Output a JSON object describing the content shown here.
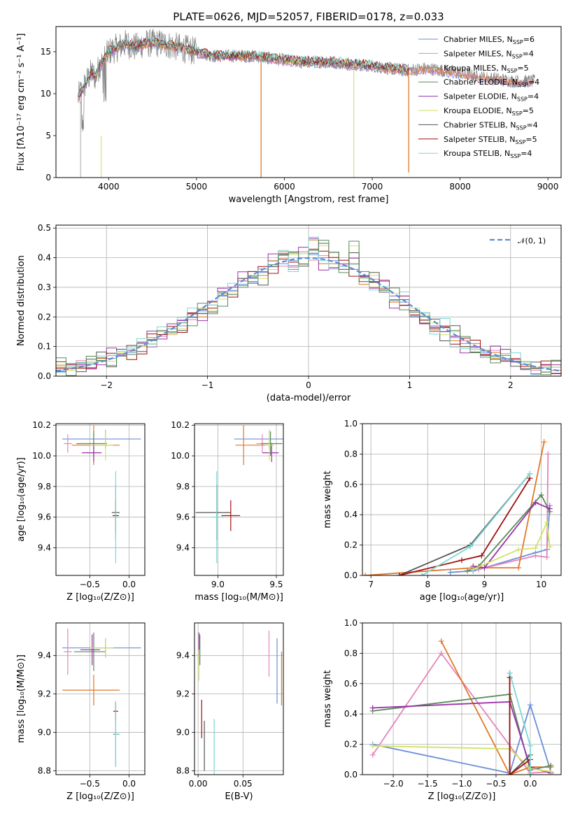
{
  "colors": [
    "#6a8fd8",
    "#e484bb",
    "#e07828",
    "#5a8a5a",
    "#9a32a8",
    "#d2e262",
    "#555555",
    "#a01010",
    "#7ed6d6"
  ],
  "chart_data": [
    {
      "id": "spectrum",
      "type": "line",
      "title": "PLATE=0626, MJD=52057, FIBERID=0178, z=0.033",
      "xlabel": "wavelength [Angstrom, rest frame]",
      "ylabel": "Flux [fλ10⁻¹⁷ erg cm⁻² s⁻¹ A⁻¹]",
      "xlim": [
        3400,
        9150
      ],
      "ylim": [
        0,
        18
      ],
      "xticks": [
        4000,
        5000,
        6000,
        7000,
        8000,
        9000
      ],
      "yticks": [
        0,
        5,
        10,
        15
      ],
      "legend_position": "top-right",
      "legend": [
        "Chabrier MILES, N_SSP=6",
        "Salpeter MILES, N_SSP=4",
        "Kroupa MILES, N_SSP=5",
        "Chabrier ELODIE, N_SSP=4",
        "Salpeter ELODIE, N_SSP=4",
        "Kroupa ELODIE, N_SSP=5",
        "Chabrier STELIB, N_SSP=4",
        "Salpeter STELIB, N_SSP=5",
        "Kroupa STELIB, N_SSP=4"
      ],
      "data_curve": {
        "x": [
          3650,
          3700,
          3750,
          3800,
          3850,
          3900,
          3950,
          4000,
          4100,
          4200,
          4300,
          4400,
          4500,
          4600,
          4800,
          5000,
          5200,
          5400,
          5600,
          5800,
          6000,
          6200,
          6400,
          6600,
          6800,
          7000,
          7200,
          7400,
          7600,
          7800,
          8000,
          8200,
          8400,
          8600,
          8800
        ],
        "y": [
          9.5,
          10.5,
          11.5,
          12.5,
          12,
          13.5,
          14,
          15,
          15.5,
          16,
          15.5,
          16,
          16,
          16,
          15.5,
          15,
          14.5,
          14.5,
          14.5,
          14.3,
          14,
          13.8,
          13.8,
          13.7,
          13.5,
          13.3,
          13,
          12.8,
          13,
          12.8,
          12.5,
          12,
          11.8,
          11.5,
          11.5
        ]
      }
    },
    {
      "id": "residuals",
      "type": "histogram",
      "xlabel": "(data-model)/error",
      "ylabel": "Normed distribution",
      "xlim": [
        -2.5,
        2.5
      ],
      "ylim": [
        0,
        0.51
      ],
      "xticks": [
        -2,
        -1,
        0,
        1,
        2
      ],
      "yticks": [
        0.0,
        0.1,
        0.2,
        0.3,
        0.4,
        0.5
      ],
      "legend": [
        "𝒩(0, 1)"
      ],
      "legend_position": "top-right",
      "bin_width": 0.1,
      "bin_start": -2.5,
      "series": [
        {
          "values": [
            0.02,
            0.02,
            0.03,
            0.04,
            0.05,
            0.06,
            0.07,
            0.08,
            0.1,
            0.12,
            0.14,
            0.15,
            0.17,
            0.2,
            0.22,
            0.24,
            0.27,
            0.29,
            0.31,
            0.33,
            0.35,
            0.37,
            0.38,
            0.39,
            0.4,
            0.41,
            0.4,
            0.39,
            0.38,
            0.36,
            0.34,
            0.32,
            0.3,
            0.27,
            0.25,
            0.22,
            0.2,
            0.17,
            0.15,
            0.13,
            0.11,
            0.1,
            0.08,
            0.07,
            0.06,
            0.05,
            0.04,
            0.03,
            0.03,
            0.03
          ]
        },
        {
          "values": [
            0.03,
            0.025,
            0.035,
            0.045,
            0.06,
            0.07,
            0.075,
            0.09,
            0.11,
            0.13,
            0.15,
            0.16,
            0.19,
            0.21,
            0.2,
            0.25,
            0.28,
            0.3,
            0.33,
            0.32,
            0.34,
            0.39,
            0.42,
            0.36,
            0.42,
            0.46,
            0.38,
            0.38,
            0.36,
            0.38,
            0.31,
            0.3,
            0.32,
            0.25,
            0.27,
            0.2,
            0.19,
            0.16,
            0.17,
            0.12,
            0.1,
            0.11,
            0.07,
            0.08,
            0.05,
            0.06,
            0.04,
            0.03,
            0.04,
            0.02
          ]
        },
        {
          "values": [
            0.04,
            0.02,
            0.03,
            0.05,
            0.06,
            0.05,
            0.08,
            0.09,
            0.1,
            0.11,
            0.15,
            0.14,
            0.16,
            0.19,
            0.23,
            0.22,
            0.26,
            0.28,
            0.32,
            0.34,
            0.33,
            0.36,
            0.4,
            0.41,
            0.38,
            0.4,
            0.44,
            0.4,
            0.36,
            0.44,
            0.33,
            0.34,
            0.3,
            0.28,
            0.24,
            0.23,
            0.21,
            0.18,
            0.14,
            0.15,
            0.12,
            0.09,
            0.09,
            0.06,
            0.07,
            0.05,
            0.05,
            0.03,
            0.03,
            0.03
          ]
        }
      ],
      "normal_curve": {
        "mu": 0,
        "sigma": 1
      }
    },
    {
      "id": "age-vs-Z",
      "type": "errorbar",
      "xlabel": "Z [log₁₀(Z/Z⊙)]",
      "ylabel": "age  [log₁₀(age/yr)]",
      "xlim": [
        -0.93,
        0.2
      ],
      "ylim": [
        9.22,
        10.21
      ],
      "xticks": [
        -0.5,
        0.0
      ],
      "yticks": [
        9.4,
        9.6,
        9.8,
        10.0,
        10.2
      ],
      "points": [
        {
          "x": -0.3,
          "y": 10.11,
          "xerr": [
            0.55,
            0.45
          ],
          "yerr": 0.06,
          "c": 0
        },
        {
          "x": -0.78,
          "y": 10.08,
          "xerr": [
            0.05,
            0.05
          ],
          "yerr": 0.06,
          "c": 1
        },
        {
          "x": -0.45,
          "y": 10.07,
          "xerr": [
            0.28,
            0.33
          ],
          "yerr": 0.13,
          "c": 2
        },
        {
          "x": -0.45,
          "y": 10.08,
          "xerr": [
            0.22,
            0.17
          ],
          "yerr": 0.08,
          "c": 3
        },
        {
          "x": -0.45,
          "y": 10.02,
          "xerr": [
            0.15,
            0.1
          ],
          "yerr": 0.06,
          "c": 4
        },
        {
          "x": -0.3,
          "y": 10.07,
          "xerr": [
            0.2,
            0.1
          ],
          "yerr": 0.1,
          "c": 5
        },
        {
          "x": -0.17,
          "y": 9.63,
          "xerr": [
            0.05,
            0.05
          ],
          "yerr": 0.18,
          "c": 6
        },
        {
          "x": -0.17,
          "y": 9.61,
          "xerr": [
            0.04,
            0.04
          ],
          "yerr": 0.1,
          "c": 7
        },
        {
          "x": -0.17,
          "y": 9.6,
          "xerr": [
            0.03,
            0.05
          ],
          "yerr": 0.3,
          "c": 8
        }
      ]
    },
    {
      "id": "age-vs-mass",
      "type": "errorbar",
      "xlabel": "mass [log₁₀(M/M⊙)]",
      "ylabel": "",
      "xlim": [
        8.8,
        9.56
      ],
      "ylim": [
        9.22,
        10.21
      ],
      "xticks": [
        9.0,
        9.5
      ],
      "yticks": [
        9.4,
        9.6,
        9.8,
        10.0,
        10.2
      ],
      "points": [
        {
          "x": 9.44,
          "y": 10.11,
          "xerr": [
            0.3,
            0.15
          ],
          "yerr": 0.06,
          "c": 0
        },
        {
          "x": 9.38,
          "y": 10.08,
          "xerr": [
            0.05,
            0.05
          ],
          "yerr": 0.06,
          "c": 1
        },
        {
          "x": 9.22,
          "y": 10.07,
          "xerr": [
            0.07,
            0.2
          ],
          "yerr": 0.13,
          "c": 2
        },
        {
          "x": 9.45,
          "y": 10.08,
          "xerr": [
            0.08,
            0.1
          ],
          "yerr": 0.08,
          "c": 3
        },
        {
          "x": 9.46,
          "y": 10.02,
          "xerr": [
            0.08,
            0.06
          ],
          "yerr": 0.06,
          "c": 4
        },
        {
          "x": 9.44,
          "y": 10.07,
          "xerr": [
            0.04,
            0.04
          ],
          "yerr": 0.1,
          "c": 5
        },
        {
          "x": 8.99,
          "y": 9.63,
          "xerr": [
            0.18,
            0.12
          ],
          "yerr": 0.18,
          "c": 6
        },
        {
          "x": 9.11,
          "y": 9.61,
          "xerr": [
            0.08,
            0.08
          ],
          "yerr": 0.1,
          "c": 7
        },
        {
          "x": 8.99,
          "y": 9.6,
          "xerr": [
            0.04,
            0.06
          ],
          "yerr": 0.3,
          "c": 8
        }
      ]
    },
    {
      "id": "weight-vs-age",
      "type": "line",
      "xlabel": "age  [log₁₀(age/yr)]",
      "ylabel": "mass weight",
      "xlim": [
        6.85,
        10.35
      ],
      "ylim": [
        0,
        1.0
      ],
      "xticks": [
        7,
        8,
        9,
        10
      ],
      "yticks": [
        0.0,
        0.2,
        0.4,
        0.6,
        0.8,
        1.0
      ],
      "series": [
        {
          "c": 0,
          "x": [
            8.4,
            8.8,
            9.0,
            9.9,
            10.1,
            10.15
          ],
          "y": [
            0.02,
            0.03,
            0.05,
            0.15,
            0.17,
            0.46
          ]
        },
        {
          "c": 1,
          "x": [
            8.9,
            9.9,
            10.1,
            10.12
          ],
          "y": [
            0.04,
            0.13,
            0.12,
            0.8
          ]
        },
        {
          "c": 2,
          "x": [
            6.9,
            8.8,
            9.6,
            10.05
          ],
          "y": [
            0.0,
            0.05,
            0.05,
            0.88
          ]
        },
        {
          "c": 3,
          "x": [
            8.7,
            8.9,
            10.0,
            10.15
          ],
          "y": [
            0.03,
            0.06,
            0.53,
            0.42
          ]
        },
        {
          "c": 4,
          "x": [
            8.8,
            9.0,
            9.9,
            10.15
          ],
          "y": [
            0.06,
            0.05,
            0.48,
            0.44
          ]
        },
        {
          "c": 5,
          "x": [
            8.8,
            9.6,
            9.9,
            10.1,
            10.15
          ],
          "y": [
            0.04,
            0.17,
            0.18,
            0.35,
            0.19
          ]
        },
        {
          "c": 6,
          "x": [
            7.5,
            8.75,
            9.8
          ],
          "y": [
            0.0,
            0.2,
            0.67
          ]
        },
        {
          "c": 7,
          "x": [
            7.5,
            8.6,
            8.95,
            9.8
          ],
          "y": [
            0.0,
            0.1,
            0.13,
            0.64
          ]
        },
        {
          "c": 8,
          "x": [
            7.9,
            8.75,
            9.8
          ],
          "y": [
            0.0,
            0.19,
            0.67
          ]
        }
      ]
    },
    {
      "id": "mass-vs-Z",
      "type": "errorbar",
      "xlabel": "Z [log₁₀(Z/Z⊙)]",
      "ylabel": "mass [log₁₀(M/M⊙)]",
      "xlim": [
        -0.93,
        0.2
      ],
      "ylim": [
        8.78,
        9.57
      ],
      "xticks": [
        -0.5,
        0.0
      ],
      "yticks": [
        8.8,
        9.0,
        9.2,
        9.4
      ],
      "points": [
        {
          "x": -0.3,
          "y": 9.44,
          "xerr": [
            0.55,
            0.45
          ],
          "yerr": 0.05,
          "c": 0
        },
        {
          "x": -0.78,
          "y": 9.42,
          "xerr": [
            0.05,
            0.05
          ],
          "yerr": 0.12,
          "c": 1
        },
        {
          "x": -0.45,
          "y": 9.22,
          "xerr": [
            0.4,
            0.33
          ],
          "yerr": 0.08,
          "c": 2
        },
        {
          "x": -0.45,
          "y": 9.42,
          "xerr": [
            0.25,
            0.15
          ],
          "yerr": 0.1,
          "c": 3
        },
        {
          "x": -0.47,
          "y": 9.43,
          "xerr": [
            0.15,
            0.1
          ],
          "yerr": 0.08,
          "c": 4
        },
        {
          "x": -0.3,
          "y": 9.44,
          "xerr": [
            0.2,
            0.1
          ],
          "yerr": 0.05,
          "c": 5
        },
        {
          "x": -0.17,
          "y": 8.99,
          "xerr": [
            0.03,
            0.05
          ],
          "yerr": 0.17,
          "c": 6
        },
        {
          "x": -0.17,
          "y": 9.11,
          "xerr": [
            0.03,
            0.03
          ],
          "yerr": 0.05,
          "c": 7
        },
        {
          "x": -0.17,
          "y": 8.99,
          "xerr": [
            0.02,
            0.05
          ],
          "yerr": 0.17,
          "c": 8
        }
      ]
    },
    {
      "id": "mass-vs-EBV",
      "type": "errorbar",
      "xlabel": "E(B-V)",
      "ylabel": "",
      "xlim": [
        -0.004,
        0.095
      ],
      "ylim": [
        8.78,
        9.57
      ],
      "xticks": [
        0.0,
        0.05
      ],
      "yticks": [
        8.8,
        9.0,
        9.2,
        9.4
      ],
      "points": [
        {
          "x": 0.088,
          "y": 9.32,
          "xerr": [
            0,
            0
          ],
          "yerr": 0.17,
          "c": 0
        },
        {
          "x": 0.079,
          "y": 9.41,
          "xerr": [
            0,
            0
          ],
          "yerr": 0.12,
          "c": 1
        },
        {
          "x": 0.093,
          "y": 9.28,
          "xerr": [
            0,
            0
          ],
          "yerr": 0.14,
          "c": 2
        },
        {
          "x": 0.002,
          "y": 9.43,
          "xerr": [
            0,
            0
          ],
          "yerr": 0.08,
          "c": 3
        },
        {
          "x": 0.001,
          "y": 9.45,
          "xerr": [
            0,
            0
          ],
          "yerr": 0.07,
          "c": 4
        },
        {
          "x": 0.001,
          "y": 9.35,
          "xerr": [
            0,
            0
          ],
          "yerr": 0.08,
          "c": 5
        },
        {
          "x": 0.007,
          "y": 8.93,
          "xerr": [
            0,
            0
          ],
          "yerr": 0.13,
          "c": 6
        },
        {
          "x": 0.004,
          "y": 9.07,
          "xerr": [
            0,
            0
          ],
          "yerr": 0.1,
          "c": 7
        },
        {
          "x": 0.018,
          "y": 8.92,
          "xerr": [
            0,
            0
          ],
          "yerr": 0.15,
          "c": 8
        }
      ]
    },
    {
      "id": "weight-vs-Z",
      "type": "line",
      "xlabel": "Z [log₁₀(Z/Z⊙)]",
      "ylabel": "mass weight",
      "xlim": [
        -2.45,
        0.45
      ],
      "ylim": [
        0,
        1.0
      ],
      "xticks": [
        -2.0,
        -1.5,
        -1.0,
        -0.5,
        0.0
      ],
      "yticks": [
        0.0,
        0.2,
        0.4,
        0.6,
        0.8,
        1.0
      ],
      "series": [
        {
          "c": 0,
          "x": [
            -2.3,
            -0.3,
            0.0,
            0.3
          ],
          "y": [
            0.2,
            0.01,
            0.46,
            0.02
          ]
        },
        {
          "c": 1,
          "x": [
            -2.3,
            -1.3,
            0.0,
            0.3
          ],
          "y": [
            0.13,
            0.8,
            0.01,
            0.02
          ]
        },
        {
          "c": 2,
          "x": [
            -1.3,
            -0.3,
            0.0,
            0.3
          ],
          "y": [
            0.88,
            0.0,
            0.05,
            0.05
          ]
        },
        {
          "c": 3,
          "x": [
            -2.3,
            -0.3,
            0.0,
            0.3
          ],
          "y": [
            0.42,
            0.53,
            0.03,
            0.06
          ]
        },
        {
          "c": 4,
          "x": [
            -2.3,
            -0.3,
            0.0,
            0.3
          ],
          "y": [
            0.44,
            0.48,
            0.05,
            0.01
          ]
        },
        {
          "c": 5,
          "x": [
            -2.3,
            -0.3,
            0.0,
            0.3
          ],
          "y": [
            0.19,
            0.17,
            0.04,
            0.02
          ]
        },
        {
          "c": 6,
          "x": [
            -0.3,
            -0.3,
            0.0
          ],
          "y": [
            0.67,
            0.0,
            0.13
          ]
        },
        {
          "c": 7,
          "x": [
            -0.3,
            -0.3,
            0.0
          ],
          "y": [
            0.64,
            0.0,
            0.1
          ]
        },
        {
          "c": 8,
          "x": [
            -0.3,
            0.0,
            0.0
          ],
          "y": [
            0.67,
            0.19,
            0.0
          ]
        }
      ]
    }
  ]
}
